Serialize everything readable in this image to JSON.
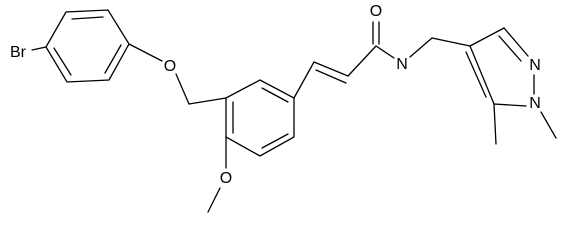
{
  "atoms": [
    "Br",
    "O",
    "O",
    "O",
    "N",
    "N",
    "N"
  ]
}
